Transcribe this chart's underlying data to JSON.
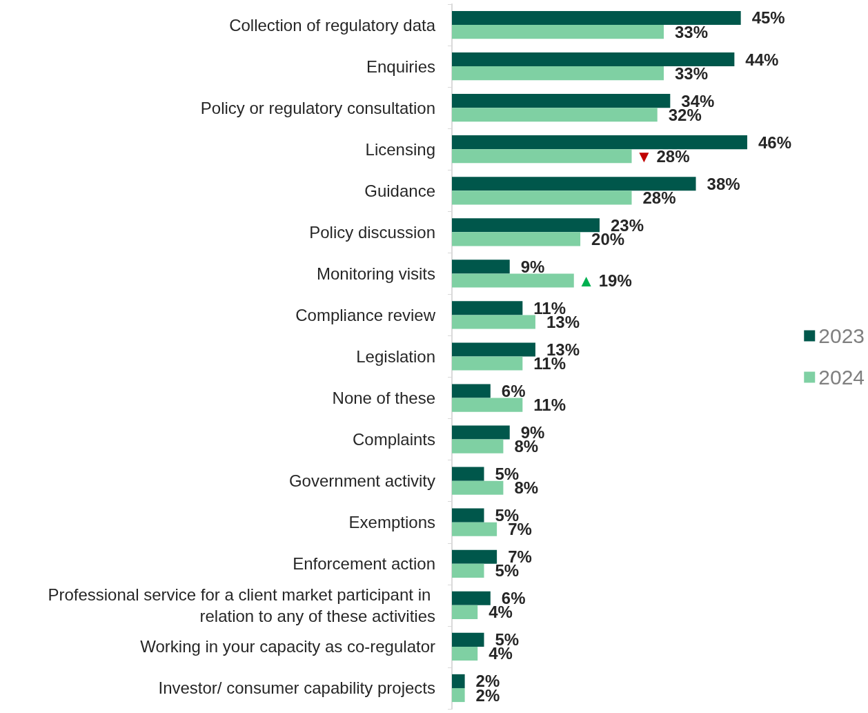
{
  "chart_data": {
    "type": "bar",
    "orientation": "horizontal",
    "legend": "right",
    "categories": [
      "Collection of regulatory data",
      "Enquiries",
      "Policy or regulatory consultation",
      "Licensing",
      "Guidance",
      "Policy discussion",
      "Monitoring visits",
      "Compliance review",
      "Legislation",
      "None of these",
      "Complaints",
      "Government activity",
      "Exemptions",
      "Enforcement action",
      "Professional service for a client market participant in relation to any of these activities",
      "Working in your capacity as co-regulator",
      "Investor/ consumer capability projects"
    ],
    "series": [
      {
        "name": "2023",
        "color": "#00574b",
        "values": [
          45,
          44,
          34,
          46,
          38,
          23,
          9,
          11,
          13,
          6,
          9,
          5,
          5,
          7,
          6,
          5,
          2
        ],
        "value_labels": [
          "45%",
          "44%",
          "34%",
          "46%",
          "38%",
          "23%",
          "9%",
          "11%",
          "13%",
          "6%",
          "9%",
          "5%",
          "5%",
          "7%",
          "6%",
          "5%",
          "2%"
        ]
      },
      {
        "name": "2024",
        "color": "#7fd0a3",
        "values": [
          33,
          33,
          32,
          28,
          28,
          20,
          19,
          13,
          11,
          11,
          8,
          8,
          7,
          5,
          4,
          4,
          2
        ],
        "value_labels": [
          "33%",
          "33%",
          "32%",
          "28%",
          "28%",
          "20%",
          "19%",
          "13%",
          "11%",
          "11%",
          "8%",
          "8%",
          "7%",
          "5%",
          "4%",
          "4%",
          "2%"
        ]
      }
    ],
    "annotations": [
      {
        "text": "▼",
        "x": 28,
        "y": "Licensing"
      },
      {
        "text": "▲",
        "x": 19,
        "y": "Monitoring visits"
      }
    ]
  }
}
